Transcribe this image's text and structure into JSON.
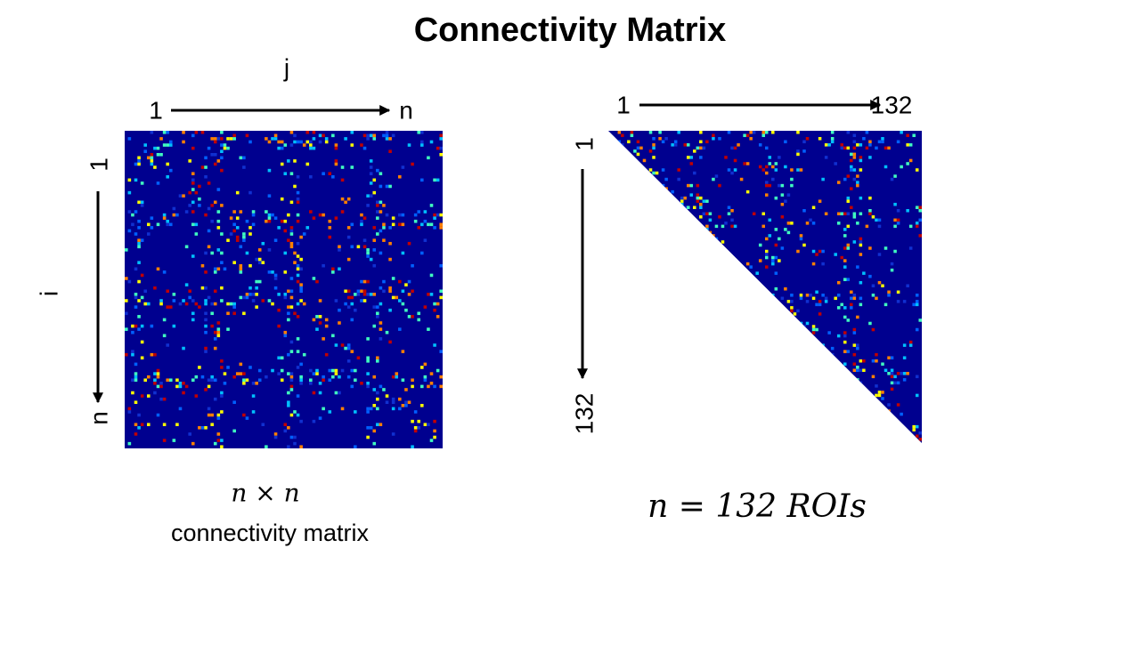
{
  "title": "Connectivity Matrix",
  "left_panel": {
    "column_axis": {
      "label": "j",
      "start": "1",
      "end": "n"
    },
    "row_axis": {
      "label": "i",
      "start": "1",
      "end": "n"
    },
    "caption_formula": "n × n",
    "caption": "connectivity matrix"
  },
  "right_panel": {
    "column_axis": {
      "start": "1",
      "end": "132"
    },
    "row_axis": {
      "start": "1",
      "end": "132"
    },
    "caption": "n = 132 ROIs"
  }
}
